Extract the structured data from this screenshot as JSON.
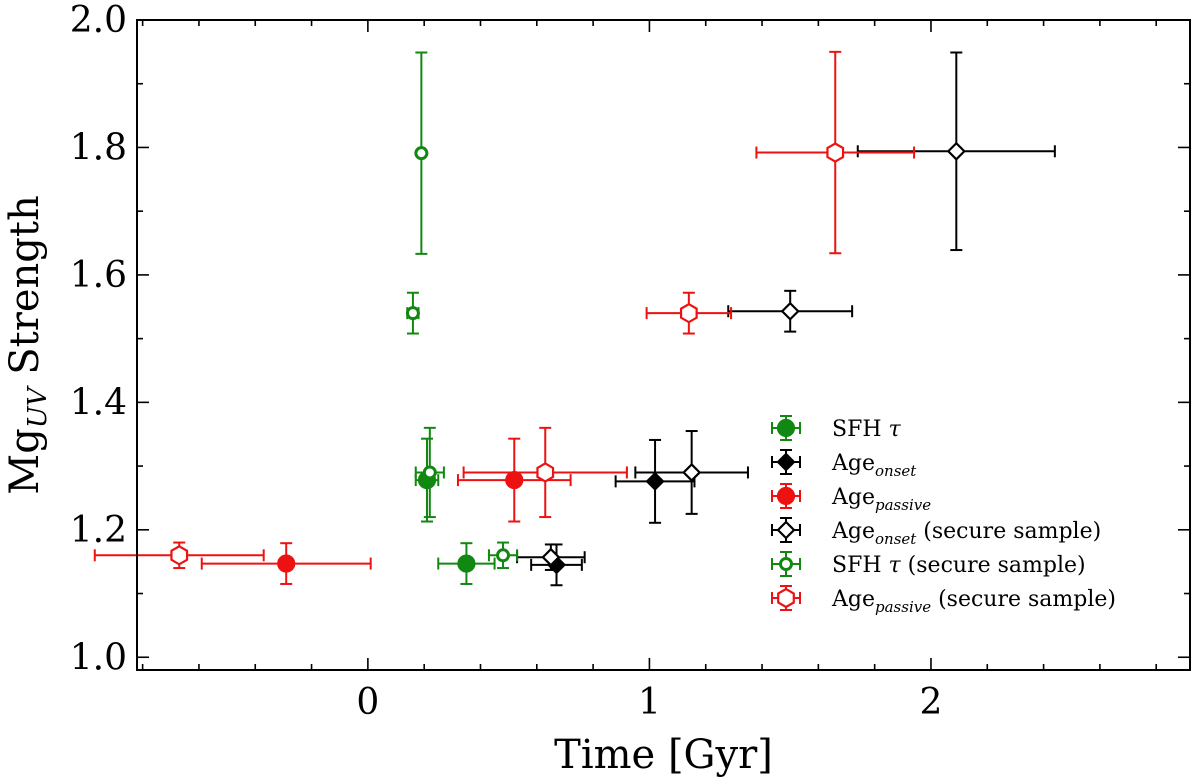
{
  "chart_data": {
    "type": "scatter",
    "title": "",
    "xlabel": "Time [Gyr]",
    "ylabel_main": "Mg",
    "ylabel_sub": "UV",
    "ylabel_tail": " Strength",
    "xlim": [
      -0.82,
      2.92
    ],
    "ylim": [
      0.98,
      2.0
    ],
    "xticks": [
      0,
      1,
      2
    ],
    "xtick_labels": [
      "0",
      "1",
      "2"
    ],
    "yticks": [
      1.0,
      1.2,
      1.4,
      1.6,
      1.8,
      2.0
    ],
    "ytick_labels": [
      "1.0",
      "1.2",
      "1.4",
      "1.6",
      "1.8",
      "2.0"
    ],
    "legend_position": "lower-right",
    "series": [
      {
        "name": "SFH τ",
        "legend_main": "SFH ",
        "legend_tau": "τ",
        "legend_sub": "",
        "legend_tail": "",
        "color": "#118811",
        "marker": "circle",
        "filled": true,
        "points": [
          {
            "x": 0.35,
            "y": 1.147,
            "xerr": 0.1,
            "yerr": 0.032
          },
          {
            "x": 0.21,
            "y": 1.278,
            "xerr": 0.04,
            "yerr": 0.065
          }
        ]
      },
      {
        "name": "Age onset",
        "legend_main": "Age",
        "legend_tau": "",
        "legend_sub": "onset",
        "legend_tail": "",
        "color": "#000000",
        "marker": "diamond",
        "filled": true,
        "points": [
          {
            "x": 0.67,
            "y": 1.145,
            "xerr": 0.09,
            "yerr": 0.032
          },
          {
            "x": 1.02,
            "y": 1.276,
            "xerr": 0.14,
            "yerr": 0.065
          }
        ]
      },
      {
        "name": "Age passive",
        "legend_main": "Age",
        "legend_tau": "",
        "legend_sub": "passive",
        "legend_tail": "",
        "color": "#ee1111",
        "marker": "circle",
        "filled": true,
        "points": [
          {
            "x": -0.29,
            "y": 1.147,
            "xerr": 0.3,
            "yerr": 0.032
          },
          {
            "x": 0.52,
            "y": 1.278,
            "xerr": 0.2,
            "yerr": 0.065
          }
        ]
      },
      {
        "name": "Age onset (secure sample)",
        "legend_main": "Age",
        "legend_tau": "",
        "legend_sub": "onset",
        "legend_tail": " (secure sample)",
        "color": "#000000",
        "marker": "diamond",
        "filled": false,
        "points": [
          {
            "x": 0.65,
            "y": 1.157,
            "xerr": 0.12,
            "yerr": 0.02
          },
          {
            "x": 1.15,
            "y": 1.29,
            "xerr": 0.2,
            "yerr": 0.065
          },
          {
            "x": 1.5,
            "y": 1.543,
            "xerr": 0.22,
            "yerr": 0.032
          },
          {
            "x": 2.09,
            "y": 1.794,
            "xerr": 0.35,
            "yerr": 0.155
          }
        ]
      },
      {
        "name": "SFH τ (secure sample)",
        "legend_main": "SFH ",
        "legend_tau": "τ",
        "legend_sub": "",
        "legend_tail": " (secure sample)",
        "color": "#118811",
        "marker": "circle-small",
        "filled": false,
        "points": [
          {
            "x": 0.48,
            "y": 1.16,
            "xerr": 0.05,
            "yerr": 0.02
          },
          {
            "x": 0.22,
            "y": 1.29,
            "xerr": 0.05,
            "yerr": 0.07
          },
          {
            "x": 0.16,
            "y": 1.54,
            "xerr": 0.02,
            "yerr": 0.032
          },
          {
            "x": 0.19,
            "y": 1.791,
            "xerr": 0.01,
            "yerr": 0.158
          }
        ]
      },
      {
        "name": "Age passive (secure sample)",
        "legend_main": "Age",
        "legend_tau": "",
        "legend_sub": "passive",
        "legend_tail": " (secure sample)",
        "color": "#ee1111",
        "marker": "hexagon",
        "filled": false,
        "points": [
          {
            "x": -0.67,
            "y": 1.16,
            "xerr": 0.3,
            "yerr": 0.02
          },
          {
            "x": 0.63,
            "y": 1.29,
            "xerr": 0.29,
            "yerr": 0.07
          },
          {
            "x": 1.14,
            "y": 1.54,
            "xerr": 0.15,
            "yerr": 0.032
          },
          {
            "x": 1.66,
            "y": 1.792,
            "xerr": 0.28,
            "yerr": 0.158
          }
        ]
      }
    ]
  }
}
